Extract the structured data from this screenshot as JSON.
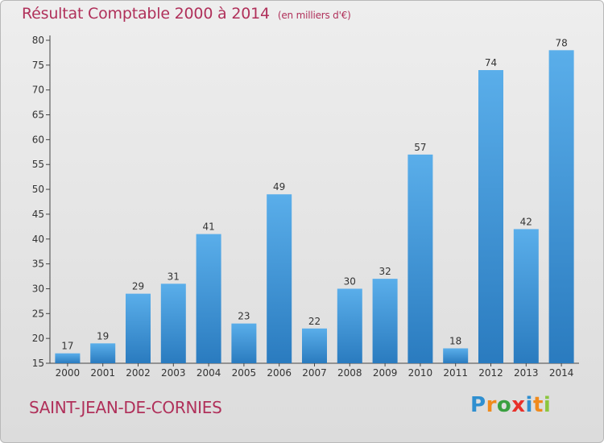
{
  "header": {
    "title": "Résultat Comptable 2000 à 2014",
    "unit": "(en milliers d'€)"
  },
  "footer": {
    "commune": "SAINT-JEAN-DE-CORNIES",
    "logo_letters": [
      "P",
      "r",
      "o",
      "x",
      "i",
      "t",
      "i"
    ],
    "logo_colors": [
      "#2f8fd0",
      "#f08a1c",
      "#3aa040",
      "#e8302a",
      "#2f8fd0",
      "#f08a1c",
      "#8cc63e"
    ]
  },
  "colors": {
    "title": "#b0305a",
    "bar_top": "#5aaeea",
    "bar_bottom": "#2a7bbf",
    "axis": "#444444",
    "grid": "#c8c8c8"
  },
  "chart_data": {
    "type": "bar",
    "title": "Résultat Comptable 2000 à 2014",
    "subtitle": "(en milliers d'€)",
    "xlabel": "",
    "ylabel": "",
    "categories": [
      "2000",
      "2001",
      "2002",
      "2003",
      "2004",
      "2005",
      "2006",
      "2007",
      "2008",
      "2009",
      "2010",
      "2011",
      "2012",
      "2013",
      "2014"
    ],
    "values": [
      17,
      19,
      29,
      31,
      41,
      23,
      49,
      22,
      30,
      32,
      57,
      18,
      74,
      42,
      78
    ],
    "ylim": [
      15,
      80
    ],
    "yticks": [
      15,
      20,
      25,
      30,
      35,
      40,
      45,
      50,
      55,
      60,
      65,
      70,
      75,
      80
    ],
    "grid": false,
    "data_labels": true
  }
}
